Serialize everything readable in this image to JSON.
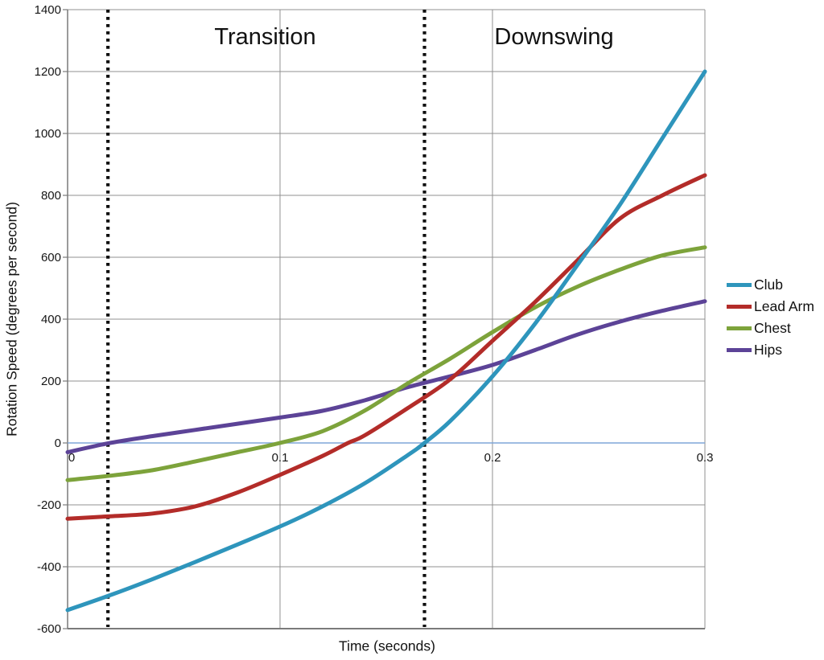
{
  "chart_data": {
    "type": "line",
    "title": "",
    "xlabel": "Time (seconds)",
    "ylabel": "Rotation Speed (degrees per second)",
    "xlim": [
      0,
      0.3
    ],
    "ylim": [
      -600,
      1400
    ],
    "grid": true,
    "legend_position": "right",
    "y_ticks": [
      1400,
      1200,
      1000,
      800,
      600,
      400,
      200,
      0,
      -200,
      -400,
      -600
    ],
    "x_ticks": [
      0,
      0.1,
      0.2,
      0.3
    ],
    "x_tick_labels": [
      "0",
      "0.1",
      "0.2",
      "0.3"
    ],
    "series": [
      {
        "name": "Club",
        "color": "#2E95BC",
        "points": [
          [
            0,
            -540
          ],
          [
            0.02,
            -492
          ],
          [
            0.04,
            -440
          ],
          [
            0.06,
            -385
          ],
          [
            0.08,
            -328
          ],
          [
            0.1,
            -270
          ],
          [
            0.12,
            -205
          ],
          [
            0.14,
            -130
          ],
          [
            0.16,
            -40
          ],
          [
            0.168,
            0
          ],
          [
            0.18,
            70
          ],
          [
            0.2,
            215
          ],
          [
            0.22,
            385
          ],
          [
            0.24,
            575
          ],
          [
            0.26,
            770
          ],
          [
            0.28,
            985
          ],
          [
            0.3,
            1200
          ]
        ]
      },
      {
        "name": "Lead Arm",
        "color": "#B32C29",
        "points": [
          [
            0,
            -245
          ],
          [
            0.02,
            -237
          ],
          [
            0.04,
            -228
          ],
          [
            0.06,
            -205
          ],
          [
            0.08,
            -160
          ],
          [
            0.1,
            -103
          ],
          [
            0.12,
            -42
          ],
          [
            0.132,
            0
          ],
          [
            0.14,
            25
          ],
          [
            0.16,
            112
          ],
          [
            0.18,
            205
          ],
          [
            0.2,
            330
          ],
          [
            0.22,
            455
          ],
          [
            0.24,
            590
          ],
          [
            0.26,
            725
          ],
          [
            0.28,
            800
          ],
          [
            0.3,
            865
          ]
        ]
      },
      {
        "name": "Chest",
        "color": "#7DA33B",
        "points": [
          [
            0,
            -120
          ],
          [
            0.02,
            -106
          ],
          [
            0.04,
            -88
          ],
          [
            0.06,
            -60
          ],
          [
            0.08,
            -30
          ],
          [
            0.1,
            0
          ],
          [
            0.12,
            38
          ],
          [
            0.14,
            105
          ],
          [
            0.16,
            192
          ],
          [
            0.18,
            272
          ],
          [
            0.2,
            358
          ],
          [
            0.22,
            438
          ],
          [
            0.24,
            505
          ],
          [
            0.26,
            560
          ],
          [
            0.28,
            606
          ],
          [
            0.3,
            632
          ]
        ]
      },
      {
        "name": "Hips",
        "color": "#5C4397",
        "points": [
          [
            0,
            -30
          ],
          [
            0.02,
            0
          ],
          [
            0.04,
            22
          ],
          [
            0.06,
            42
          ],
          [
            0.08,
            62
          ],
          [
            0.1,
            82
          ],
          [
            0.12,
            104
          ],
          [
            0.14,
            138
          ],
          [
            0.16,
            180
          ],
          [
            0.18,
            215
          ],
          [
            0.2,
            252
          ],
          [
            0.22,
            300
          ],
          [
            0.24,
            350
          ],
          [
            0.26,
            392
          ],
          [
            0.28,
            427
          ],
          [
            0.3,
            458
          ]
        ]
      }
    ],
    "annotations": {
      "phase_lines_t": [
        0.019,
        0.168
      ],
      "phase_labels": [
        {
          "text": "Transition",
          "t_center": 0.093
        },
        {
          "text": "Downswing",
          "t_center": 0.229
        }
      ]
    }
  },
  "colors": {
    "gridline": "#909090",
    "axis": "#7a7a7a",
    "zero_line": "#7EA6D8",
    "phase_line": "#0d0d0d",
    "text": "#161616",
    "background": "#ffffff"
  }
}
